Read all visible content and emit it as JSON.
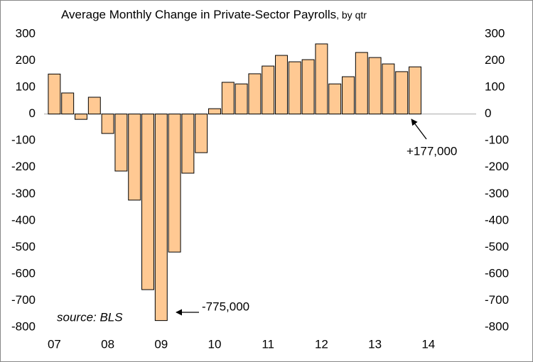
{
  "chart_data": {
    "type": "bar",
    "title": "Average Monthly Change in Private-Sector Payrolls",
    "subtitle": ", by qtr",
    "categories": [
      "07",
      null,
      null,
      null,
      "08",
      null,
      null,
      null,
      "09",
      null,
      null,
      null,
      "10",
      null,
      null,
      null,
      "11",
      null,
      null,
      null,
      "12",
      null,
      null,
      null,
      "13",
      null,
      null,
      null,
      "14"
    ],
    "values": [
      150,
      79,
      -20,
      63,
      -73,
      -214,
      -323,
      -659,
      -775,
      -518,
      -222,
      -145,
      20,
      119,
      113,
      151,
      180,
      220,
      196,
      204,
      263,
      113,
      140,
      231,
      212,
      188,
      159,
      177,
      null
    ],
    "color": "#ffc993",
    "ylim": [
      -800,
      300
    ],
    "yticks": [
      300,
      200,
      100,
      0,
      -100,
      -200,
      -300,
      -400,
      -500,
      -600,
      -700,
      -800
    ],
    "y2lim": [
      -800,
      300
    ],
    "y2ticks": [
      300,
      200,
      100,
      0,
      -100,
      -200,
      -300,
      -400,
      -500,
      -600,
      -700,
      -800
    ],
    "annotations": [
      "+177,000",
      "-775,000",
      "source: BLS"
    ]
  }
}
